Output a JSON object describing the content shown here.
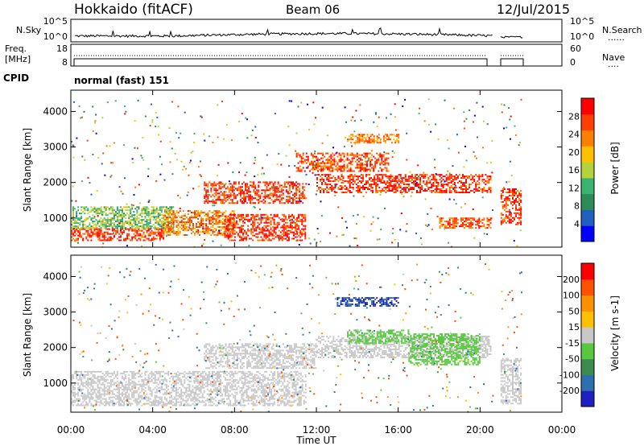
{
  "header": {
    "station": "Hokkaido (fitACF)",
    "beam": "Beam 06",
    "date": "12/Jul/2015"
  },
  "panels": {
    "nsky": {
      "left_label": "N.Sky",
      "ticks_left": [
        "10^5",
        "10^0"
      ],
      "ticks_right": [
        "10^5",
        "10^0"
      ],
      "right_label": "N.Search",
      "right_line": "......"
    },
    "freq": {
      "left_label_top": "Freq.",
      "left_label_bottom": "[MHz]",
      "ticks_left": [
        "18",
        "8"
      ],
      "ticks_right": [
        "60",
        "0"
      ],
      "right_label": "Nave",
      "right_line": "...."
    },
    "cpid": {
      "left_label": "CPID",
      "mode_text": "normal (fast) 151"
    },
    "power": {
      "ylabel": "Slant Range [km]",
      "yticks": [
        "4000",
        "3000",
        "2000",
        "1000"
      ],
      "colorbar_label": "Power [dB]",
      "colorbar_ticks": [
        "28",
        "24",
        "20",
        "16",
        "12",
        "8",
        "4"
      ],
      "colors": [
        "#0000ff",
        "#1f5fbf",
        "#2e8b57",
        "#3cb371",
        "#b4d23c",
        "#ffc000",
        "#ff8000",
        "#ff4000",
        "#ff0000"
      ]
    },
    "velocity": {
      "ylabel": "Slant Range [km]",
      "yticks": [
        "4000",
        "3000",
        "2000",
        "1000"
      ],
      "colorbar_label": "Velocity [m s-1]",
      "colorbar_ticks": [
        "200",
        "100",
        "50",
        "15",
        "-15",
        "-50",
        "-100",
        "-200"
      ],
      "colors": [
        "#2020c0",
        "#2e6fb0",
        "#3c8c50",
        "#58c840",
        "#c8c8c8",
        "#ffc000",
        "#ff9000",
        "#ff5000",
        "#ff0000"
      ]
    }
  },
  "xaxis": {
    "ticks": [
      "00:00",
      "04:00",
      "08:00",
      "12:00",
      "16:00",
      "20:00",
      "00:00"
    ],
    "label": "Time UT"
  },
  "chart_data": [
    {
      "type": "heatmap",
      "title": "Power",
      "ylabel": "Slant Range [km]",
      "xlabel": "",
      "xlim_hours": [
        0,
        24
      ],
      "ylim_km": [
        180,
        4600
      ],
      "colorbar_label": "Power [dB]",
      "colorbar_range": [
        0,
        32
      ],
      "regions": [
        {
          "t": [
            0.0,
            4.5
          ],
          "r": [
            350,
            700
          ],
          "value": 28
        },
        {
          "t": [
            0.0,
            5.0
          ],
          "r": [
            700,
            1300
          ],
          "value": 14
        },
        {
          "t": [
            4.5,
            8.0
          ],
          "r": [
            500,
            1200
          ],
          "value": 24
        },
        {
          "t": [
            7.5,
            11.5
          ],
          "r": [
            350,
            1100
          ],
          "value": 28
        },
        {
          "t": [
            6.5,
            11.5
          ],
          "r": [
            1400,
            2000
          ],
          "value": 28
        },
        {
          "t": [
            12.0,
            20.5
          ],
          "r": [
            1700,
            2200
          ],
          "value": 28
        },
        {
          "t": [
            11.0,
            15.5
          ],
          "r": [
            2300,
            2800
          ],
          "value": 26
        },
        {
          "t": [
            18.0,
            20.5
          ],
          "r": [
            700,
            1000
          ],
          "value": 26
        },
        {
          "t": [
            21.0,
            22.0
          ],
          "r": [
            800,
            1800
          ],
          "value": 28
        },
        {
          "t": [
            13.5,
            16.0
          ],
          "r": [
            3100,
            3350
          ],
          "value": 24
        }
      ]
    },
    {
      "type": "heatmap",
      "title": "Velocity",
      "ylabel": "Slant Range [km]",
      "xlabel": "Time UT",
      "xlim_hours": [
        0,
        24
      ],
      "ylim_km": [
        180,
        4600
      ],
      "colorbar_label": "Velocity [m s-1]",
      "colorbar_range": [
        -200,
        200
      ],
      "regions": [
        {
          "t": [
            0.0,
            11.5
          ],
          "r": [
            350,
            1300
          ],
          "value": 0
        },
        {
          "t": [
            6.5,
            12.0
          ],
          "r": [
            1400,
            2100
          ],
          "value": 0
        },
        {
          "t": [
            12.0,
            20.5
          ],
          "r": [
            1700,
            2300
          ],
          "value": 0
        },
        {
          "t": [
            13.5,
            16.5
          ],
          "r": [
            2100,
            2500
          ],
          "value": 30
        },
        {
          "t": [
            16.5,
            20.0
          ],
          "r": [
            1500,
            2400
          ],
          "value": 30
        },
        {
          "t": [
            13.0,
            16.0
          ],
          "r": [
            3150,
            3400
          ],
          "value": 200
        },
        {
          "t": [
            21.0,
            22.0
          ],
          "r": [
            400,
            1700
          ],
          "value": 0
        }
      ]
    }
  ]
}
